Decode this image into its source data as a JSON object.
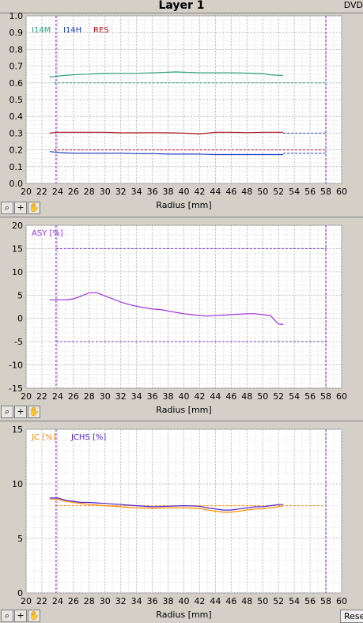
{
  "title": "Layer 1",
  "format_label": "DVD",
  "reset_label": "Reset",
  "colors": {
    "i14m": "#2e9e7e",
    "i14h": "#1f3fbf",
    "res": "#b01020",
    "asy": "#9b30d9",
    "jc": "#ff8c00",
    "jchs": "#5020d0",
    "limit": "#8040d0"
  },
  "toolbar_icons": [
    "zoom-icon",
    "crosshair-icon",
    "pan-hand-icon"
  ],
  "chart_data": [
    {
      "type": "line",
      "xlabel": "Radius [mm]",
      "xlim": [
        20,
        60
      ],
      "ylim": [
        0,
        1
      ],
      "x_ticks": [
        "20",
        "22",
        "24",
        "26",
        "28",
        "30",
        "32",
        "34",
        "36",
        "38",
        "40",
        "42",
        "44",
        "46",
        "48",
        "50",
        "52",
        "54",
        "56",
        "58",
        "60"
      ],
      "y_ticks": [
        "0.0",
        "0.1",
        "0.2",
        "0.3",
        "0.4",
        "0.5",
        "0.6",
        "0.7",
        "0.8",
        "0.9",
        "1.0"
      ],
      "vlines": [
        23.8,
        58
      ],
      "series": [
        {
          "name": "I14M",
          "color": "#2e9e7e",
          "x": [
            23,
            24,
            25,
            26,
            27,
            28,
            29,
            30,
            32,
            34,
            36,
            38,
            39,
            40,
            42,
            44,
            46,
            48,
            50,
            51,
            52,
            52.6
          ],
          "y": [
            0.635,
            0.64,
            0.645,
            0.648,
            0.65,
            0.652,
            0.655,
            0.656,
            0.657,
            0.657,
            0.66,
            0.663,
            0.665,
            0.663,
            0.66,
            0.66,
            0.66,
            0.658,
            0.655,
            0.648,
            0.645,
            0.645
          ]
        },
        {
          "name": "I14H",
          "color": "#1f3fbf",
          "x": [
            23,
            24,
            25,
            26,
            28,
            30,
            32,
            34,
            36,
            38,
            40,
            42,
            44,
            46,
            48,
            50,
            52,
            52.6
          ],
          "y": [
            0.19,
            0.185,
            0.182,
            0.18,
            0.18,
            0.18,
            0.18,
            0.178,
            0.178,
            0.175,
            0.175,
            0.175,
            0.172,
            0.172,
            0.172,
            0.172,
            0.172,
            0.172
          ]
        },
        {
          "name": "RES",
          "color": "#b01020",
          "x": [
            23,
            24,
            26,
            28,
            30,
            32,
            34,
            36,
            38,
            40,
            42,
            43,
            44,
            46,
            48,
            50,
            52,
            52.6
          ],
          "y": [
            0.3,
            0.305,
            0.305,
            0.305,
            0.305,
            0.302,
            0.302,
            0.303,
            0.302,
            0.3,
            0.295,
            0.3,
            0.305,
            0.305,
            0.303,
            0.305,
            0.305,
            0.305
          ]
        }
      ],
      "limits": [
        {
          "y": 0.6,
          "color": "#2e9e7e",
          "from": 23.5,
          "to": 58
        },
        {
          "y": 0.3,
          "color": "#1f3fbf",
          "from": 52.6,
          "to": 58
        },
        {
          "y": 0.2,
          "color": "#b01020",
          "from": 23.5,
          "to": 58
        },
        {
          "y": 0.18,
          "color": "#1f3fbf",
          "from": 52.6,
          "to": 58
        }
      ]
    },
    {
      "type": "line",
      "xlabel": "Radius [mm]",
      "xlim": [
        20,
        60
      ],
      "ylim": [
        -15,
        20
      ],
      "x_ticks": [
        "20",
        "22",
        "24",
        "26",
        "28",
        "30",
        "32",
        "34",
        "36",
        "38",
        "40",
        "42",
        "44",
        "46",
        "48",
        "50",
        "52",
        "54",
        "56",
        "58",
        "60"
      ],
      "y_ticks": [
        "-15",
        "-10",
        "-5",
        "0",
        "5",
        "10",
        "15",
        "20"
      ],
      "vlines": [
        23.8,
        58
      ],
      "series": [
        {
          "name": "ASY [%]",
          "color": "#9b30d9",
          "x": [
            23,
            24,
            25,
            26,
            27,
            28,
            29,
            30,
            31,
            32,
            33,
            34,
            35,
            36,
            37,
            38,
            39,
            40,
            41,
            42,
            43,
            44,
            45,
            46,
            47,
            48,
            49,
            50,
            51,
            51.6,
            52,
            52.6
          ],
          "y": [
            4,
            4,
            4,
            4.2,
            4.8,
            5.5,
            5.5,
            4.8,
            4.2,
            3.5,
            3.0,
            2.6,
            2.3,
            2.0,
            1.9,
            1.6,
            1.3,
            1.0,
            0.8,
            0.6,
            0.5,
            0.6,
            0.7,
            0.8,
            0.9,
            1.0,
            1.0,
            0.8,
            0.6,
            -0.5,
            -1.2,
            -1.3
          ]
        }
      ],
      "limits": [
        {
          "y": 15,
          "color": "#8040d0",
          "from": 23.8,
          "to": 58
        },
        {
          "y": -5,
          "color": "#8040d0",
          "from": 23.8,
          "to": 58
        }
      ]
    },
    {
      "type": "line",
      "xlabel": "Radius [mm]",
      "xlim": [
        20,
        60
      ],
      "ylim": [
        0,
        15
      ],
      "x_ticks": [
        "20",
        "22",
        "24",
        "26",
        "28",
        "30",
        "32",
        "34",
        "36",
        "38",
        "40",
        "42",
        "44",
        "46",
        "48",
        "50",
        "52",
        "54",
        "56",
        "58",
        "60"
      ],
      "y_ticks": [
        "0",
        "5",
        "10",
        "15"
      ],
      "vlines": [
        23.8,
        58
      ],
      "series": [
        {
          "name": "JC [%]",
          "color": "#ff8c00",
          "x": [
            23,
            24,
            25,
            26,
            27,
            28,
            30,
            32,
            34,
            36,
            38,
            40,
            42,
            43,
            44,
            45,
            46,
            47,
            48,
            49,
            50,
            51,
            52,
            52.6
          ],
          "y": [
            8.6,
            8.6,
            8.4,
            8.3,
            8.2,
            8.1,
            8.0,
            7.9,
            7.8,
            7.75,
            7.8,
            7.8,
            7.75,
            7.6,
            7.5,
            7.4,
            7.4,
            7.5,
            7.6,
            7.7,
            7.7,
            7.8,
            7.9,
            8.0
          ]
        },
        {
          "name": "JCHS [%]",
          "color": "#5020d0",
          "x": [
            23,
            24,
            25,
            26,
            27,
            28,
            30,
            32,
            34,
            36,
            38,
            40,
            42,
            43,
            44,
            45,
            46,
            47,
            48,
            49,
            50,
            51,
            52,
            52.6
          ],
          "y": [
            8.7,
            8.7,
            8.5,
            8.4,
            8.3,
            8.3,
            8.2,
            8.1,
            8.0,
            7.9,
            7.95,
            8.0,
            7.95,
            7.8,
            7.7,
            7.6,
            7.6,
            7.7,
            7.8,
            7.9,
            7.9,
            8.0,
            8.1,
            8.1
          ]
        }
      ],
      "limits": [
        {
          "y": 8,
          "color": "#ff8c00",
          "from": 23.8,
          "to": 58
        }
      ]
    }
  ]
}
